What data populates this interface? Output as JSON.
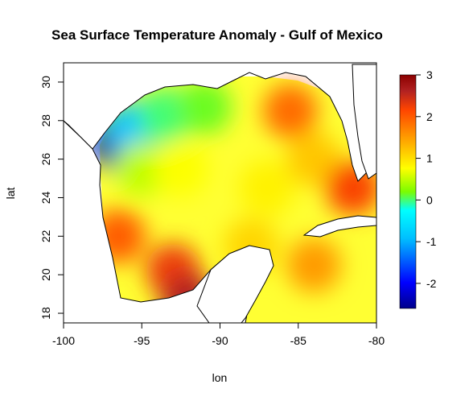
{
  "chart_data": {
    "type": "heatmap",
    "title": "Sea Surface Temperature Anomaly - Gulf of Mexico",
    "xlabel": "lon",
    "ylabel": "lat",
    "xlim": [
      -100,
      -80
    ],
    "ylim": [
      17.5,
      31
    ],
    "x_ticks": [
      "-100",
      "-95",
      "-90",
      "-85",
      "-80"
    ],
    "y_ticks": [
      "18",
      "20",
      "22",
      "24",
      "26",
      "28",
      "30"
    ],
    "colorbar": {
      "range": [
        -2.6,
        3
      ],
      "ticks": [
        "-2",
        "-1",
        "0",
        "1",
        "2",
        "3"
      ],
      "colors": [
        "#00008b",
        "#0000ff",
        "#00bfff",
        "#00ffff",
        "#7cfc00",
        "#ffff00",
        "#ffa500",
        "#ff4500",
        "#b22222",
        "#8b0000"
      ]
    },
    "regions": [
      {
        "lon": -96.5,
        "lat": 26.8,
        "value": -2.4
      },
      {
        "lon": -95.5,
        "lat": 27.6,
        "value": -1.3
      },
      {
        "lon": -93.5,
        "lat": 28.3,
        "value": -0.4
      },
      {
        "lon": -91.0,
        "lat": 28.7,
        "value": -0.2
      },
      {
        "lon": -95.0,
        "lat": 25.5,
        "value": 0.2
      },
      {
        "lon": -92.5,
        "lat": 25.5,
        "value": 0.5
      },
      {
        "lon": -87.0,
        "lat": 24.5,
        "value": 0.6
      },
      {
        "lon": -85.5,
        "lat": 28.5,
        "value": 1.5
      },
      {
        "lon": -84.0,
        "lat": 26.0,
        "value": 0.9
      },
      {
        "lon": -96.5,
        "lat": 22.0,
        "value": 1.6
      },
      {
        "lon": -93.0,
        "lat": 20.2,
        "value": 1.9
      },
      {
        "lon": -92.0,
        "lat": 18.6,
        "value": 2.4
      },
      {
        "lon": -88.0,
        "lat": 21.5,
        "value": 0.8
      },
      {
        "lon": -84.0,
        "lat": 20.5,
        "value": 1.2
      },
      {
        "lon": -81.5,
        "lat": 24.5,
        "value": 1.8
      }
    ]
  }
}
